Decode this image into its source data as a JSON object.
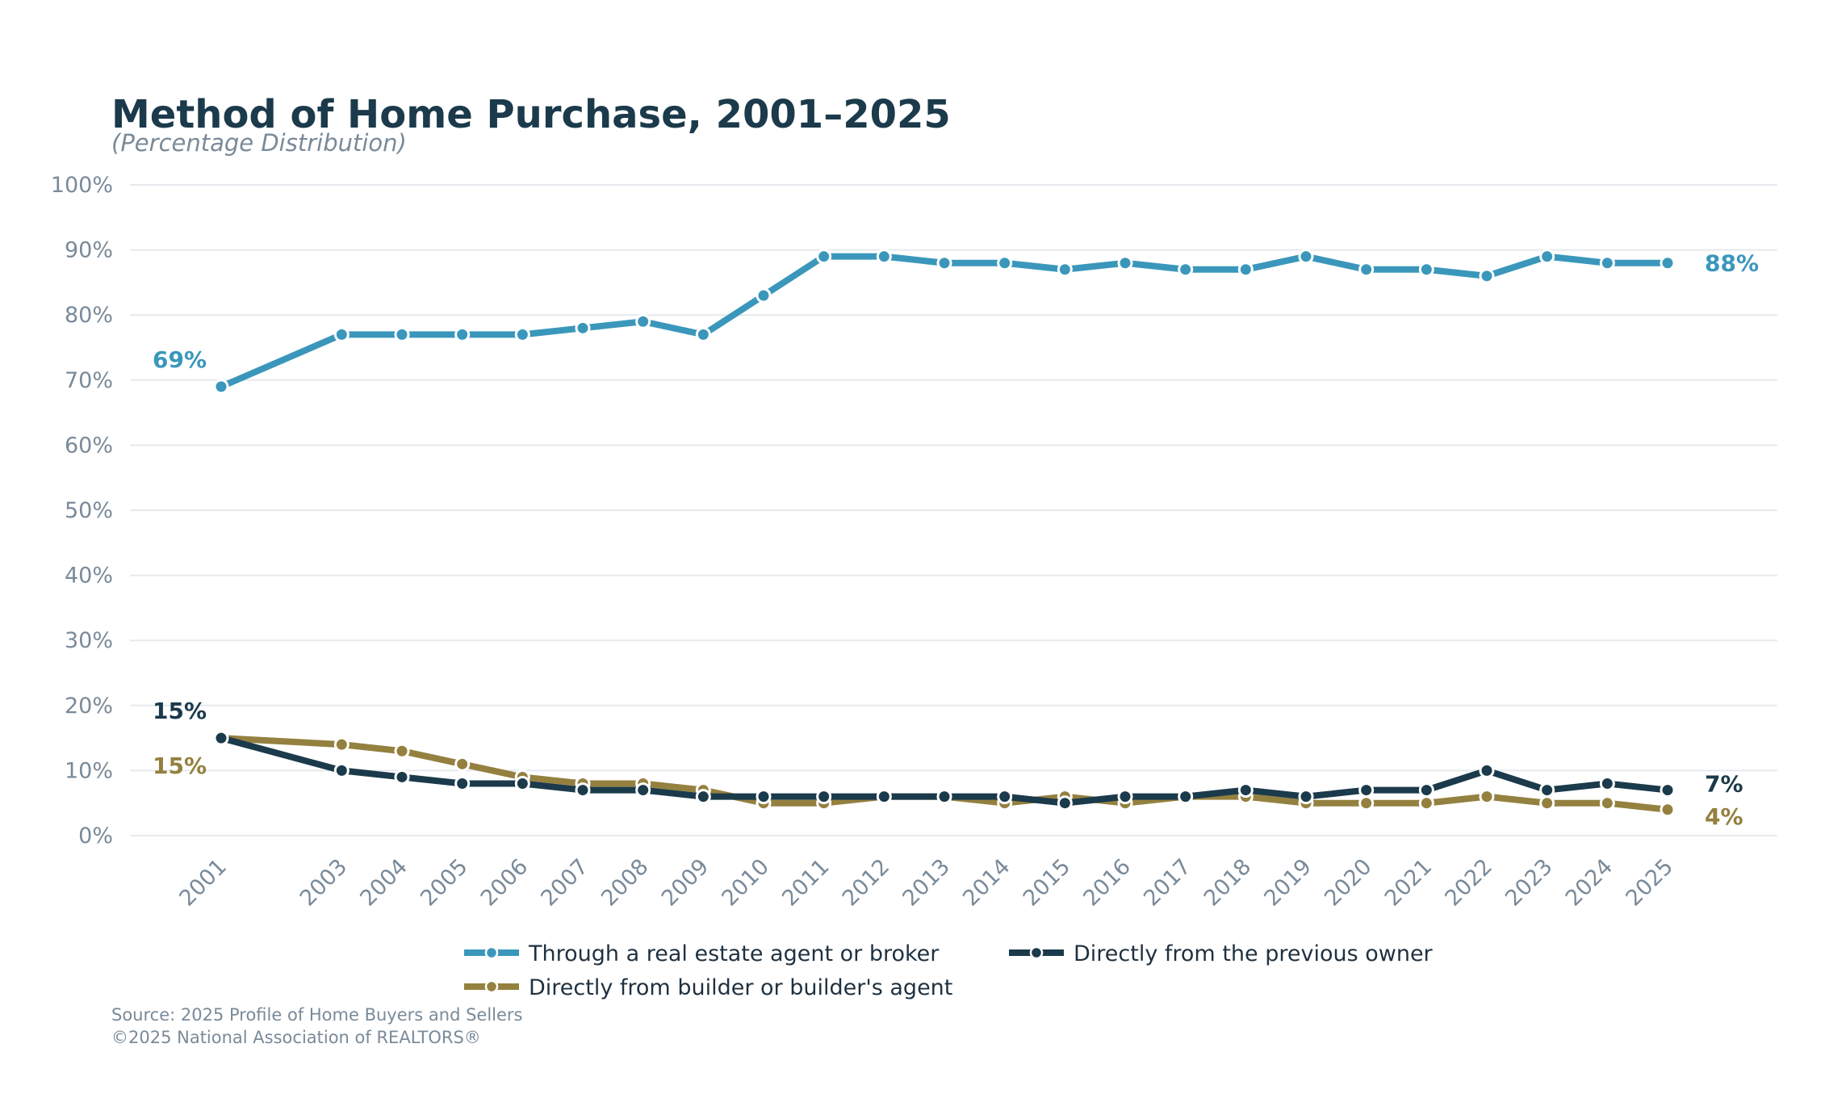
{
  "chart_data": {
    "type": "line",
    "title": "Method of Home Purchase, 2001–2025",
    "subtitle": "(Percentage Distribution)",
    "xlabel": "",
    "ylabel": "",
    "ylim": [
      0,
      100
    ],
    "yticks": [
      "0%",
      "10%",
      "20%",
      "30%",
      "40%",
      "50%",
      "60%",
      "70%",
      "80%",
      "90%",
      "100%"
    ],
    "grid": true,
    "legend_placement": "bottom",
    "x": [
      2001,
      2003,
      2004,
      2005,
      2006,
      2007,
      2008,
      2009,
      2010,
      2011,
      2012,
      2013,
      2014,
      2015,
      2016,
      2017,
      2018,
      2019,
      2020,
      2021,
      2022,
      2023,
      2024,
      2025
    ],
    "series": [
      {
        "name": "Through a real estate agent or broker",
        "color": "#3a97bb",
        "values": [
          69,
          77,
          77,
          77,
          77,
          78,
          79,
          77,
          83,
          89,
          89,
          88,
          88,
          87,
          88,
          87,
          87,
          89,
          87,
          87,
          86,
          89,
          88,
          88
        ],
        "start_label": "69%",
        "end_label": "88%"
      },
      {
        "name": "Directly from builder or builder's agent",
        "color": "#94803f",
        "values": [
          15,
          14,
          13,
          11,
          9,
          8,
          8,
          7,
          5,
          5,
          6,
          6,
          5,
          6,
          5,
          6,
          6,
          5,
          5,
          5,
          6,
          5,
          5,
          4
        ],
        "start_label": "15%",
        "end_label": "4%"
      },
      {
        "name": "Directly from the previous owner",
        "color": "#1b3a4b",
        "values": [
          15,
          10,
          9,
          8,
          8,
          7,
          7,
          6,
          6,
          6,
          6,
          6,
          6,
          5,
          6,
          6,
          7,
          6,
          7,
          7,
          10,
          7,
          8,
          7
        ],
        "start_label": "15%",
        "end_label": "7%"
      }
    ],
    "source_lines": [
      "Source: 2025 Profile of Home Buyers and Sellers",
      "©2025 National Association of REALTORS®"
    ]
  }
}
